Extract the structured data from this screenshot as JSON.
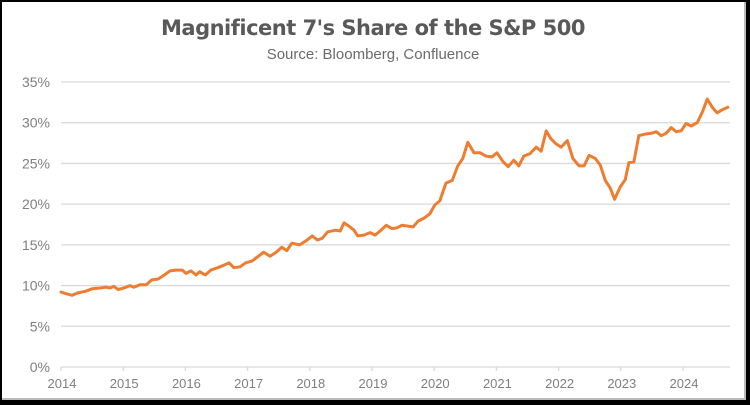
{
  "chart_data": {
    "type": "line",
    "title": "Magnificent 7's Share of the S&P 500",
    "subtitle": "Source: Bloomberg, Confluence",
    "xlabel": "",
    "ylabel": "",
    "xlim": [
      2014,
      2024.75
    ],
    "ylim": [
      0,
      35
    ],
    "y_ticks": [
      0,
      5,
      10,
      15,
      20,
      25,
      30,
      35
    ],
    "y_tick_labels": [
      "0%",
      "5%",
      "10%",
      "15%",
      "20%",
      "25%",
      "30%",
      "35%"
    ],
    "x_ticks": [
      2014,
      2015,
      2016,
      2017,
      2018,
      2019,
      2020,
      2021,
      2022,
      2023,
      2024
    ],
    "x_tick_labels": [
      "2014",
      "2015",
      "2016",
      "2017",
      "2018",
      "2019",
      "2020",
      "2021",
      "2022",
      "2023",
      "2024"
    ],
    "grid": "horizontal",
    "legend": "none",
    "series": [
      {
        "name": "Magnificent 7 share of S&P 500 (%)",
        "color": "#ED7D31",
        "x": [
          2014.0,
          2014.08,
          2014.18,
          2014.27,
          2014.39,
          2014.5,
          2014.63,
          2014.72,
          2014.79,
          2014.85,
          2014.92,
          2015.01,
          2015.11,
          2015.17,
          2015.27,
          2015.37,
          2015.46,
          2015.56,
          2015.66,
          2015.75,
          2015.85,
          2015.95,
          2016.01,
          2016.09,
          2016.17,
          2016.23,
          2016.32,
          2016.41,
          2016.52,
          2016.62,
          2016.7,
          2016.78,
          2016.88,
          2016.97,
          2017.07,
          2017.17,
          2017.26,
          2017.36,
          2017.46,
          2017.55,
          2017.63,
          2017.71,
          2017.84,
          2017.94,
          2018.04,
          2018.12,
          2018.2,
          2018.29,
          2018.42,
          2018.49,
          2018.55,
          2018.63,
          2018.71,
          2018.77,
          2018.87,
          2018.97,
          2019.05,
          2019.13,
          2019.23,
          2019.32,
          2019.4,
          2019.48,
          2019.58,
          2019.66,
          2019.74,
          2019.84,
          2019.93,
          2020.01,
          2020.09,
          2020.19,
          2020.29,
          2020.38,
          2020.46,
          2020.54,
          2020.64,
          2020.74,
          2020.83,
          2020.93,
          2021.01,
          2021.11,
          2021.19,
          2021.28,
          2021.36,
          2021.44,
          2021.54,
          2021.64,
          2021.72,
          2021.8,
          2021.88,
          2021.96,
          2022.04,
          2022.14,
          2022.23,
          2022.33,
          2022.41,
          2022.49,
          2022.59,
          2022.67,
          2022.75,
          2022.83,
          2022.9,
          2022.99,
          2023.07,
          2023.13,
          2023.21,
          2023.29,
          2023.39,
          2023.49,
          2023.57,
          2023.65,
          2023.73,
          2023.81,
          2023.89,
          2023.97,
          2024.05,
          2024.13,
          2024.23,
          2024.31,
          2024.39,
          2024.47,
          2024.55,
          2024.63,
          2024.72
        ],
        "values": [
          9.2,
          9.0,
          8.8,
          9.1,
          9.3,
          9.6,
          9.7,
          9.8,
          9.7,
          9.9,
          9.5,
          9.7,
          10.0,
          9.8,
          10.1,
          10.1,
          10.7,
          10.8,
          11.3,
          11.8,
          11.9,
          11.9,
          11.5,
          11.8,
          11.3,
          11.7,
          11.3,
          11.9,
          12.2,
          12.5,
          12.8,
          12.2,
          12.3,
          12.8,
          13.0,
          13.6,
          14.1,
          13.6,
          14.1,
          14.7,
          14.3,
          15.2,
          15.0,
          15.5,
          16.1,
          15.6,
          15.8,
          16.6,
          16.8,
          16.7,
          17.7,
          17.3,
          16.8,
          16.1,
          16.2,
          16.5,
          16.2,
          16.7,
          17.4,
          17.0,
          17.1,
          17.4,
          17.3,
          17.2,
          17.9,
          18.3,
          18.8,
          19.9,
          20.4,
          22.6,
          22.9,
          24.7,
          25.6,
          27.6,
          26.3,
          26.3,
          25.9,
          25.8,
          26.3,
          25.2,
          24.6,
          25.4,
          24.7,
          25.9,
          26.2,
          27.0,
          26.5,
          29.0,
          28.0,
          27.4,
          27.0,
          27.8,
          25.6,
          24.7,
          24.7,
          26.0,
          25.6,
          24.8,
          22.9,
          22.0,
          20.6,
          22.1,
          23.0,
          25.1,
          25.2,
          28.4,
          28.6,
          28.7,
          28.9,
          28.4,
          28.7,
          29.4,
          28.9,
          29.0,
          29.9,
          29.6,
          30.0,
          31.3,
          32.9,
          31.9,
          31.2,
          31.6,
          31.9
        ]
      }
    ]
  }
}
